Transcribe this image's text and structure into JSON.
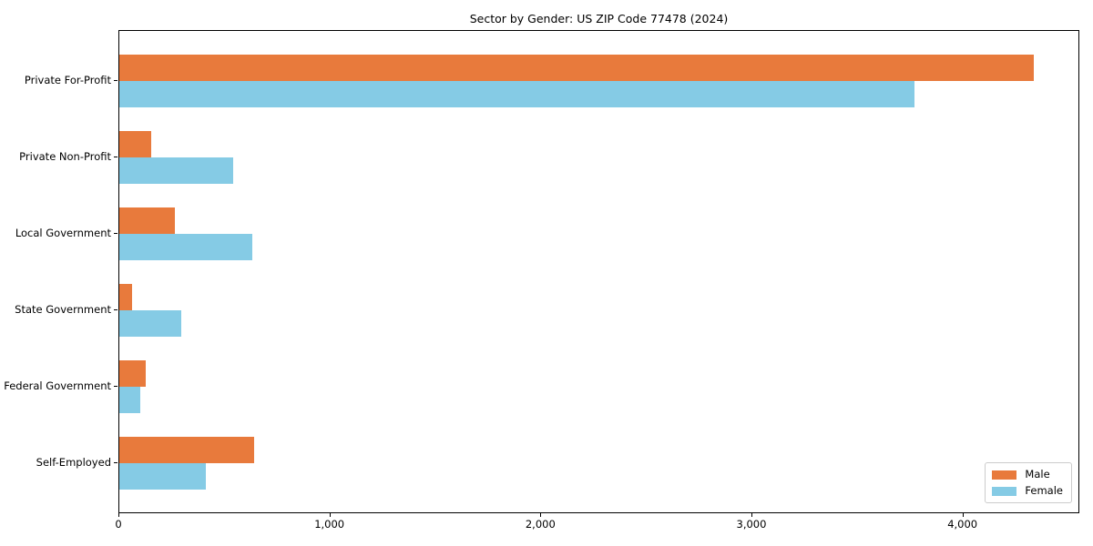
{
  "title": "Sector by Gender: US ZIP Code 77478 (2024)",
  "chart_data": {
    "type": "bar",
    "orientation": "horizontal",
    "title": "Sector by Gender: US ZIP Code 77478 (2024)",
    "categories": [
      "Private For-Profit",
      "Private Non-Profit",
      "Local Government",
      "State Government",
      "Federal Government",
      "Self-Employed"
    ],
    "series": [
      {
        "name": "Male",
        "color": "#e87a3c",
        "values": [
          4340,
          150,
          265,
          60,
          125,
          640
        ]
      },
      {
        "name": "Female",
        "color": "#85cbe5",
        "values": [
          3775,
          540,
          630,
          295,
          100,
          410
        ]
      }
    ],
    "xlabel": "",
    "ylabel": "",
    "xlim": [
      0,
      4554
    ],
    "x_ticks": [
      0,
      1000,
      2000,
      3000,
      4000
    ],
    "x_tick_labels": [
      "0",
      "1,000",
      "2,000",
      "3,000",
      "4,000"
    ],
    "grid": false,
    "legend_position": "lower right"
  }
}
